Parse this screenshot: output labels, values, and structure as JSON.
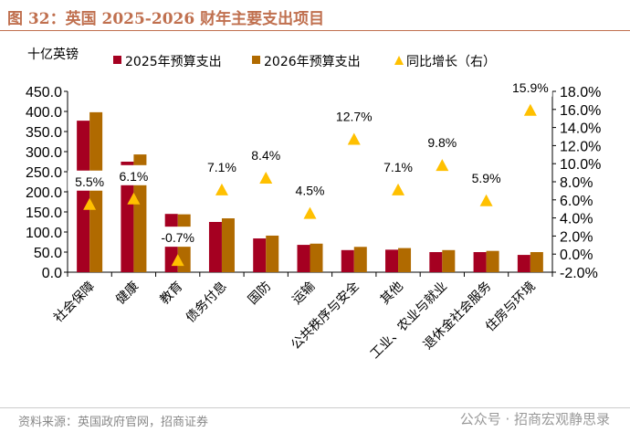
{
  "title": "图 32：英国 2025-2026 财年主要支出项目",
  "source": "资料来源：英国政府官网，招商证券",
  "watermark": "公众号 · 招商宏观静思录",
  "chart_data": {
    "type": "bar",
    "title": "",
    "ylabel": "十亿英镑",
    "ylim": [
      0,
      450
    ],
    "yticks": [
      0,
      50,
      100,
      150,
      200,
      250,
      300,
      350,
      400,
      450
    ],
    "y2lim": [
      -2,
      18
    ],
    "y2ticks": [
      -2,
      0,
      2,
      4,
      6,
      8,
      10,
      12,
      14,
      16,
      18
    ],
    "legend_position": "top",
    "grid": false,
    "categories": [
      "社会保障",
      "健康",
      "教育",
      "债务付息",
      "国防",
      "运输",
      "公共秩序与安全",
      "其他",
      "工业、农业与就业",
      "退休金社会服务",
      "住房与环境"
    ],
    "series": [
      {
        "name": "2025年预算支出",
        "type": "bar",
        "axis": "left",
        "color": "#a50021",
        "values": [
          377,
          275,
          145,
          125,
          84,
          68,
          55,
          56,
          50,
          50,
          43
        ]
      },
      {
        "name": "2026年预算支出",
        "type": "bar",
        "axis": "left",
        "color": "#b06a00",
        "values": [
          398,
          293,
          144,
          134,
          91,
          71,
          63,
          60,
          55,
          53,
          50
        ]
      },
      {
        "name": "同比增长（右）",
        "type": "scatter",
        "marker": "triangle",
        "axis": "right",
        "color": "#ffc000",
        "values": [
          5.5,
          6.1,
          -0.7,
          7.1,
          8.4,
          4.5,
          12.7,
          7.1,
          9.8,
          5.9,
          15.9
        ],
        "labels": [
          "5.5%",
          "6.1%",
          "-0.7%",
          "7.1%",
          "8.4%",
          "4.5%",
          "12.7%",
          "7.1%",
          "9.8%",
          "5.9%",
          "15.9%"
        ]
      }
    ]
  }
}
